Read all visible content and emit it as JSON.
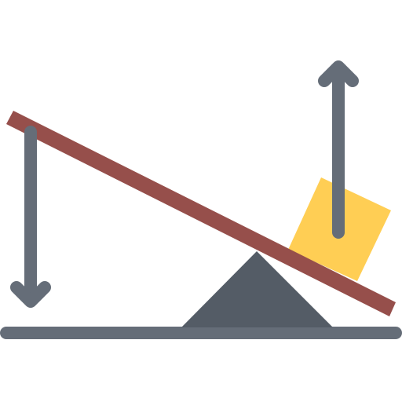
{
  "illustration": {
    "subject": "lever",
    "icons": [
      "ground-line-icon",
      "fulcrum-icon",
      "beam-icon",
      "load-box-icon",
      "arrow-down-icon",
      "arrow-up-icon"
    ],
    "colors": {
      "beam": "#964F4B",
      "fulcrum": "#545C66",
      "ground": "#656D78",
      "arrow": "#656D78",
      "load": "#FFCE54",
      "background": "#FFFFFF"
    }
  }
}
